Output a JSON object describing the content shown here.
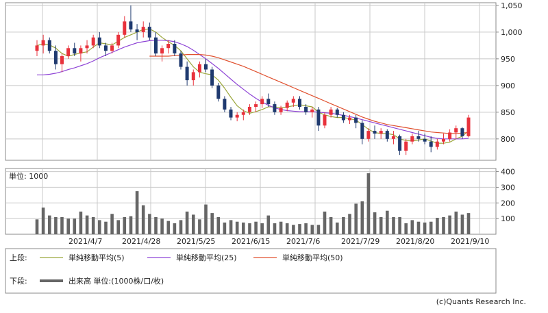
{
  "chart_data": {
    "type": "candlestick",
    "upper": {
      "ylim": [
        760,
        1055
      ],
      "y_ticks": [
        {
          "value": 800,
          "label": "800"
        },
        {
          "value": 850,
          "label": "850"
        },
        {
          "value": 900,
          "label": "900"
        },
        {
          "value": 950,
          "label": "950"
        },
        {
          "value": 1000,
          "label": "1,000"
        },
        {
          "value": 1050,
          "label": "1,050"
        }
      ],
      "grid": true,
      "up_color": "#e8323c",
      "down_color": "#1f3a6f",
      "ohlc": [
        [
          965,
          985,
          955,
          975
        ],
        [
          975,
          995,
          960,
          985
        ],
        [
          985,
          990,
          960,
          965
        ],
        [
          965,
          975,
          930,
          940
        ],
        [
          940,
          960,
          925,
          955
        ],
        [
          955,
          975,
          950,
          970
        ],
        [
          970,
          980,
          955,
          960
        ],
        [
          960,
          975,
          945,
          970
        ],
        [
          970,
          985,
          960,
          975
        ],
        [
          975,
          995,
          970,
          990
        ],
        [
          990,
          1000,
          970,
          975
        ],
        [
          975,
          980,
          955,
          965
        ],
        [
          965,
          980,
          960,
          975
        ],
        [
          975,
          1000,
          970,
          995
        ],
        [
          995,
          1030,
          990,
          1020
        ],
        [
          1020,
          1050,
          1000,
          1005
        ],
        [
          1005,
          1015,
          985,
          1000
        ],
        [
          1000,
          1020,
          990,
          1010
        ],
        [
          1010,
          1018,
          985,
          990
        ],
        [
          990,
          1000,
          955,
          960
        ],
        [
          960,
          975,
          945,
          970
        ],
        [
          970,
          985,
          960,
          978
        ],
        [
          978,
          985,
          955,
          960
        ],
        [
          960,
          965,
          930,
          935
        ],
        [
          935,
          945,
          900,
          910
        ],
        [
          910,
          930,
          900,
          925
        ],
        [
          925,
          945,
          915,
          940
        ],
        [
          940,
          950,
          925,
          930
        ],
        [
          930,
          935,
          895,
          900
        ],
        [
          900,
          905,
          870,
          875
        ],
        [
          875,
          880,
          850,
          855
        ],
        [
          855,
          860,
          835,
          840
        ],
        [
          840,
          850,
          833,
          845
        ],
        [
          845,
          855,
          835,
          850
        ],
        [
          850,
          865,
          845,
          860
        ],
        [
          860,
          870,
          850,
          865
        ],
        [
          865,
          880,
          858,
          875
        ],
        [
          875,
          885,
          860,
          865
        ],
        [
          865,
          870,
          845,
          850
        ],
        [
          850,
          862,
          845,
          858
        ],
        [
          858,
          872,
          852,
          868
        ],
        [
          868,
          880,
          860,
          875
        ],
        [
          875,
          880,
          855,
          860
        ],
        [
          860,
          865,
          845,
          850
        ],
        [
          850,
          860,
          840,
          855
        ],
        [
          855,
          860,
          815,
          825
        ],
        [
          825,
          850,
          820,
          845
        ],
        [
          845,
          860,
          840,
          855
        ],
        [
          855,
          858,
          840,
          845
        ],
        [
          845,
          850,
          830,
          835
        ],
        [
          835,
          845,
          828,
          840
        ],
        [
          840,
          845,
          820,
          830
        ],
        [
          830,
          835,
          790,
          800
        ],
        [
          800,
          820,
          795,
          815
        ],
        [
          815,
          825,
          800,
          810
        ],
        [
          810,
          820,
          800,
          815
        ],
        [
          815,
          818,
          795,
          800
        ],
        [
          800,
          815,
          790,
          805
        ],
        [
          805,
          808,
          770,
          778
        ],
        [
          778,
          800,
          770,
          795
        ],
        [
          795,
          810,
          790,
          805
        ],
        [
          805,
          815,
          795,
          800
        ],
        [
          800,
          810,
          790,
          795
        ],
        [
          795,
          805,
          775,
          785
        ],
        [
          785,
          800,
          780,
          795
        ],
        [
          795,
          810,
          790,
          800
        ],
        [
          800,
          818,
          795,
          812
        ],
        [
          812,
          825,
          800,
          820
        ],
        [
          820,
          822,
          800,
          805
        ],
        [
          805,
          845,
          803,
          840
        ]
      ],
      "ma": [
        {
          "name": "単純移動平均(5)",
          "color": "#9aa63a",
          "values": [
            975,
            978,
            976,
            970,
            960,
            955,
            958,
            961,
            963,
            972,
            980,
            978,
            976,
            983,
            990,
            995,
            1000,
            1005,
            1006,
            1000,
            990,
            982,
            975,
            965,
            950,
            935,
            925,
            922,
            920,
            910,
            895,
            878,
            862,
            853,
            848,
            851,
            855,
            860,
            860,
            858,
            860,
            862,
            864,
            862,
            860,
            850,
            845,
            842,
            840,
            840,
            838,
            835,
            827,
            818,
            812,
            810,
            810,
            808,
            800,
            797,
            796,
            798,
            800,
            796,
            792,
            792,
            794,
            800,
            805,
            815
          ]
        },
        {
          "name": "単純移動平均(25)",
          "color": "#8e44d6",
          "values": [
            920,
            920,
            921,
            923,
            926,
            930,
            933,
            937,
            941,
            946,
            952,
            957,
            962,
            967,
            972,
            976,
            980,
            982,
            984,
            985,
            985,
            984,
            982,
            978,
            973,
            966,
            958,
            950,
            941,
            932,
            922,
            912,
            902,
            893,
            884,
            876,
            869,
            863,
            858,
            855,
            853,
            852,
            851,
            851,
            851,
            850,
            849,
            848,
            846,
            844,
            842,
            839,
            836,
            833,
            830,
            827,
            824,
            821,
            818,
            815,
            812,
            809,
            806,
            803,
            801,
            800,
            800,
            800,
            800,
            801
          ]
        },
        {
          "name": "単純移動平均(50)",
          "color": "#e0502e",
          "values": [
            null,
            null,
            null,
            null,
            null,
            null,
            null,
            null,
            null,
            null,
            null,
            null,
            null,
            null,
            null,
            null,
            null,
            null,
            955,
            955,
            955,
            955,
            956,
            957,
            958,
            958,
            958,
            957,
            955,
            952,
            948,
            944,
            940,
            936,
            931,
            926,
            921,
            916,
            911,
            906,
            901,
            896,
            891,
            886,
            881,
            876,
            871,
            866,
            861,
            856,
            851,
            846,
            841,
            837,
            833,
            830,
            827,
            825,
            823,
            821,
            819,
            817,
            815,
            813,
            812,
            811,
            810,
            810,
            811,
            812
          ]
        }
      ]
    },
    "lower": {
      "ylim": [
        0,
        420
      ],
      "y_ticks": [
        {
          "value": 100,
          "label": "100"
        },
        {
          "value": 200,
          "label": "200"
        },
        {
          "value": 300,
          "label": "300"
        },
        {
          "value": 400,
          "label": "400"
        }
      ],
      "label": "単位: 1000",
      "color": "#666666",
      "volume": [
        95,
        170,
        120,
        110,
        110,
        100,
        100,
        145,
        120,
        110,
        90,
        80,
        130,
        90,
        110,
        115,
        275,
        185,
        130,
        110,
        100,
        85,
        70,
        90,
        145,
        125,
        95,
        190,
        135,
        110,
        75,
        90,
        80,
        75,
        70,
        80,
        70,
        120,
        70,
        80,
        70,
        60,
        65,
        70,
        60,
        60,
        145,
        110,
        75,
        110,
        130,
        195,
        210,
        390,
        140,
        110,
        150,
        110,
        110,
        70,
        90,
        80,
        75,
        80,
        105,
        110,
        120,
        145,
        125,
        135
      ]
    },
    "x_ticks": [
      {
        "index": 7,
        "label": "2021/4/7"
      },
      {
        "index": 16,
        "label": "2021/4/28"
      },
      {
        "index": 27,
        "label": "2021/5/25"
      },
      {
        "index": 36,
        "label": "2021/6/15"
      },
      {
        "index": 46,
        "label": "2021/7/6"
      },
      {
        "index": 56,
        "label": "2021/7/29"
      },
      {
        "index": 65,
        "label": "2021/8/20"
      },
      {
        "index": 73,
        "label": "2021/9/10"
      }
    ]
  },
  "legend": {
    "upper_label": "上段:",
    "lower_label": "下段:",
    "ma_entries": [
      {
        "label": "単純移動平均(5)",
        "color": "#9aa63a"
      },
      {
        "label": "単純移動平均(25)",
        "color": "#8e44d6"
      },
      {
        "label": "単純移動平均(50)",
        "color": "#e0502e"
      }
    ],
    "volume_entry": {
      "label": "出来高 単位:(1000株/口/枚)",
      "color": "#666666"
    }
  },
  "copyright": "(c)Quants Research Inc."
}
